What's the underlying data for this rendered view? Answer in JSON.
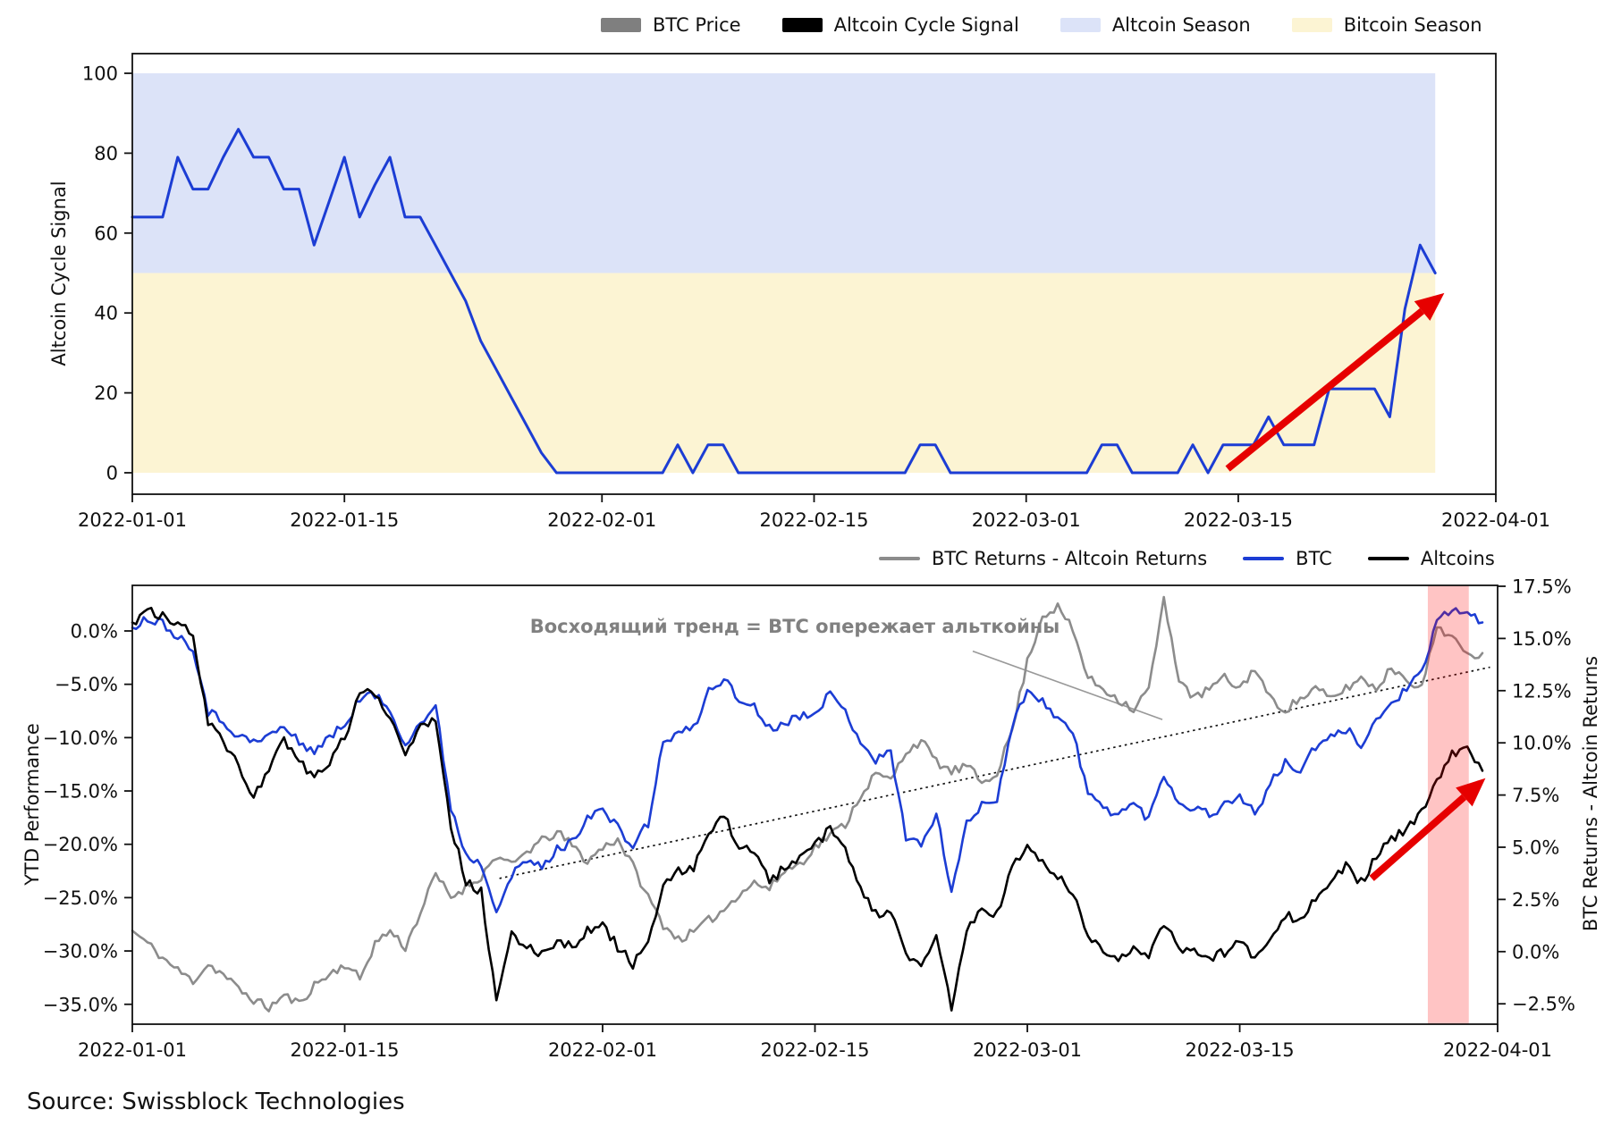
{
  "figure": {
    "source_note": "Source: Swissblock Technologies",
    "top_legend": {
      "items": [
        {
          "label": "BTC Price",
          "swatch_color": "#7f7f7f",
          "swatch_type": "patch"
        },
        {
          "label": "Altcoin Cycle Signal",
          "swatch_color": "#000000",
          "swatch_type": "patch"
        },
        {
          "label": "Altcoin Season",
          "swatch_color": "#dce3f8",
          "swatch_type": "patch"
        },
        {
          "label": "Bitcoin Season",
          "swatch_color": "#fcf4d3",
          "swatch_type": "patch"
        }
      ]
    },
    "bottom_legend": {
      "items": [
        {
          "label": "BTC Returns - Altcoin Returns",
          "swatch_color": "#8c8c8c",
          "swatch_type": "line"
        },
        {
          "label": "BTC",
          "swatch_color": "#1c3dd4",
          "swatch_type": "line"
        },
        {
          "label": "Altcoins",
          "swatch_color": "#000000",
          "swatch_type": "line"
        }
      ]
    },
    "annotation": {
      "text": "Восходящий тренд = BTC опережает альткойны",
      "color": "#808080"
    }
  },
  "chart_data": [
    {
      "id": "altcoin-cycle-signal",
      "type": "line",
      "ylabel": "Altcoin Cycle Signal",
      "x_start_date": "2022-01-01",
      "x_tick_labels": [
        "2022-01-01",
        "2022-01-15",
        "2022-02-01",
        "2022-02-15",
        "2022-03-01",
        "2022-03-15",
        "2022-04-01"
      ],
      "x_tick_days": [
        0,
        14,
        31,
        45,
        59,
        73,
        90
      ],
      "x_total_days": 90,
      "ylim": [
        0,
        100
      ],
      "y_ticks": [
        0,
        20,
        40,
        60,
        80,
        100
      ],
      "y_tick_labels": [
        "0",
        "20",
        "40",
        "60",
        "80",
        "100"
      ],
      "bands": [
        {
          "name": "Altcoin Season",
          "from": 50,
          "to": 100,
          "color": "#dce3f8"
        },
        {
          "name": "Bitcoin Season",
          "from": 0,
          "to": 50,
          "color": "#fcf4d3"
        }
      ],
      "series": [
        {
          "name": "Altcoin Cycle Signal",
          "color": "#1c3dd4",
          "width": 3,
          "values": [
            64,
            64,
            64,
            79,
            71,
            71,
            79,
            86,
            79,
            79,
            71,
            71,
            57,
            68,
            79,
            64,
            72,
            79,
            64,
            64,
            57,
            50,
            43,
            33,
            26,
            19,
            12,
            5,
            0,
            0,
            0,
            0,
            0,
            0,
            0,
            0,
            7,
            0,
            7,
            7,
            0,
            0,
            0,
            0,
            0,
            0,
            0,
            0,
            0,
            0,
            0,
            0,
            7,
            7,
            0,
            0,
            0,
            0,
            0,
            0,
            0,
            0,
            0,
            0,
            7,
            7,
            0,
            0,
            0,
            0,
            7,
            0,
            7,
            7,
            7,
            14,
            7,
            7,
            7,
            21,
            21,
            21,
            21,
            14,
            41,
            57,
            50
          ]
        }
      ],
      "arrow": {
        "x1_day": 72.3,
        "v1": 1,
        "x2_day": 86.6,
        "v2": 45,
        "color": "#e60000"
      }
    },
    {
      "id": "ytd-performance",
      "type": "line",
      "ylabel_left": "YTD Performance",
      "ylabel_right": "BTC Returns - Altcoin Returns",
      "x_start_date": "2022-01-01",
      "x_tick_labels": [
        "2022-01-01",
        "2022-01-15",
        "2022-02-01",
        "2022-02-15",
        "2022-03-01",
        "2022-03-15",
        "2022-04-01"
      ],
      "x_tick_days": [
        0,
        14,
        31,
        45,
        59,
        73,
        90
      ],
      "x_total_days": 90,
      "y_ticks_left": [
        0,
        -5,
        -10,
        -15,
        -20,
        -25,
        -30,
        -35
      ],
      "y_tick_labels_left": [
        "0.0%",
        "−5.0%",
        "−10.0%",
        "−15.0%",
        "−20.0%",
        "−25.0%",
        "−30.0%",
        "−35.0%"
      ],
      "y_ticks_right": [
        17.5,
        15,
        12.5,
        10,
        7.5,
        5,
        2.5,
        0,
        -2.5
      ],
      "y_tick_labels_right": [
        "17.5%",
        "15.0%",
        "12.5%",
        "10.0%",
        "7.5%",
        "5.0%",
        "2.5%",
        "0.0%",
        "−2.5%"
      ],
      "series": [
        {
          "name": "BTC Returns - Altcoin Returns",
          "axis": "right",
          "color": "#8c8c8c",
          "width": 2.6,
          "values": [
            1.0,
            0.4,
            -0.3,
            -0.9,
            -1.4,
            -0.6,
            -1.1,
            -1.8,
            -2.3,
            -2.7,
            -2.1,
            -2.5,
            -1.6,
            -1.1,
            -0.6,
            -1.3,
            0.4,
            1.0,
            0.2,
            1.9,
            3.7,
            2.6,
            3.1,
            3.6,
            4.6,
            4.1,
            4.8,
            5.3,
            5.7,
            5.1,
            4.3,
            5.0,
            5.4,
            4.1,
            2.6,
            1.3,
            0.6,
            0.9,
            1.5,
            2.0,
            2.8,
            3.3,
            3.0,
            3.9,
            4.2,
            5.0,
            5.6,
            6.1,
            7.5,
            8.5,
            8.2,
            9.6,
            10.1,
            9.1,
            8.6,
            8.9,
            8.1,
            8.6,
            10.6,
            13.9,
            16.1,
            16.5,
            15.4,
            13.1,
            12.6,
            12.1,
            11.6,
            12.6,
            16.8,
            13.1,
            12.1,
            12.6,
            13.1,
            12.6,
            13.6,
            12.1,
            11.6,
            12.1,
            12.6,
            12.1,
            12.6,
            13.1,
            12.6,
            13.6,
            13.1,
            12.6,
            15.6,
            15.1,
            14.1,
            14.3
          ]
        },
        {
          "name": "BTC",
          "axis": "left",
          "color": "#1c3dd4",
          "width": 2.6,
          "values": [
            0.3,
            1.2,
            0.8,
            -0.5,
            -1.5,
            -7.5,
            -8.5,
            -9.8,
            -10.5,
            -9.8,
            -9.0,
            -10.5,
            -11.2,
            -10.0,
            -8.8,
            -6.3,
            -6.0,
            -7.5,
            -10.5,
            -8.6,
            -7.2,
            -16.5,
            -21.0,
            -21.8,
            -26.0,
            -23.0,
            -21.5,
            -22.2,
            -20.5,
            -19.8,
            -17.3,
            -16.8,
            -18.5,
            -20.2,
            -18.0,
            -10.5,
            -9.5,
            -9.2,
            -5.6,
            -4.4,
            -6.6,
            -7.0,
            -9.2,
            -8.5,
            -8.0,
            -7.4,
            -6.0,
            -7.6,
            -10.2,
            -12.1,
            -11.4,
            -19.2,
            -20.1,
            -17.2,
            -24.3,
            -18.2,
            -16.2,
            -15.6,
            -9.0,
            -5.4,
            -6.6,
            -8.1,
            -9.6,
            -15.2,
            -16.6,
            -17.1,
            -16.2,
            -17.6,
            -13.4,
            -16.1,
            -16.6,
            -17.1,
            -16.4,
            -15.3,
            -17.2,
            -14.4,
            -12.4,
            -13.1,
            -10.9,
            -10.1,
            -9.2,
            -10.6,
            -8.4,
            -6.9,
            -5.3,
            -4.1,
            0.8,
            2.1,
            1.6,
            0.8
          ]
        },
        {
          "name": "Altcoins",
          "axis": "left",
          "color": "#000000",
          "width": 2.6,
          "values": [
            0.8,
            1.9,
            1.3,
            0.6,
            -0.3,
            -8.5,
            -10.3,
            -12.8,
            -15.5,
            -12.8,
            -10.4,
            -12.2,
            -13.8,
            -12.2,
            -10.0,
            -5.9,
            -5.7,
            -8.2,
            -11.2,
            -9.0,
            -8.1,
            -18.2,
            -23.5,
            -24.5,
            -34.8,
            -28.6,
            -29.6,
            -30.2,
            -29.0,
            -29.6,
            -28.1,
            -27.6,
            -29.6,
            -31.2,
            -29.2,
            -24.1,
            -22.6,
            -22.1,
            -19.1,
            -17.4,
            -20.1,
            -20.6,
            -23.6,
            -22.1,
            -21.5,
            -20.1,
            -18.6,
            -20.6,
            -24.1,
            -26.6,
            -26.1,
            -30.6,
            -31.6,
            -28.6,
            -35.3,
            -28.1,
            -26.1,
            -26.6,
            -22.1,
            -20.4,
            -21.6,
            -23.1,
            -24.6,
            -28.6,
            -30.1,
            -30.6,
            -29.6,
            -30.6,
            -27.6,
            -29.6,
            -30.1,
            -30.6,
            -30.1,
            -29.1,
            -30.6,
            -28.6,
            -26.6,
            -27.1,
            -25.1,
            -23.6,
            -22.1,
            -23.6,
            -21.1,
            -19.6,
            -18.6,
            -17.1,
            -14.1,
            -11.5,
            -11.2,
            -13.1
          ]
        }
      ],
      "trendline": {
        "x1_day": 24.2,
        "v1": -23.2,
        "x2_day": 89.5,
        "v2": -3.4,
        "style": "dotted",
        "color": "#111111"
      },
      "highlight_band": {
        "from_day": 85.4,
        "to_day": 88.1,
        "color": "rgba(255,0,0,0.23)"
      },
      "arrow": {
        "x1_day": 81.7,
        "v1": -23.2,
        "x2_day": 89.2,
        "v2": -13.8,
        "color": "#e60000"
      },
      "annotation_pointer": {
        "x1_day": 55.4,
        "v1": -1.9,
        "x2_day": 67.9,
        "v2": -8.3,
        "color": "#999999"
      }
    }
  ]
}
